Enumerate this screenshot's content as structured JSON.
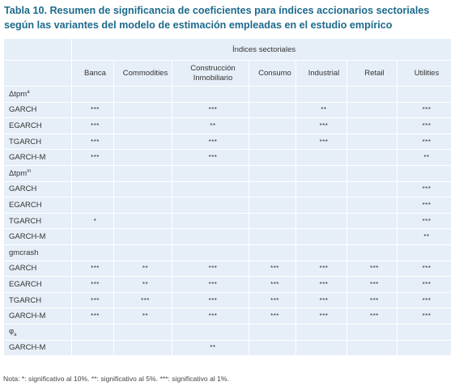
{
  "title": {
    "lines": [
      "Tabla 10. Resumen de significancia de coeficientes para índices accionarios sectoriales",
      "según las variantes del modelo de estimación empleadas en el estudio empírico"
    ]
  },
  "table": {
    "super_header": "Índices sectoriales",
    "columns": [
      "Banca",
      "Commodities",
      "Construcción\nInmobiliario",
      "Consumo",
      "Industrial",
      "Retail",
      "Utilities"
    ],
    "groups": [
      {
        "label": {
          "text": "Δtpm",
          "sup": "a"
        },
        "rows": [
          {
            "label": "GARCH",
            "cells": [
              "***",
              null,
              "***",
              null,
              "**",
              null,
              "***"
            ]
          },
          {
            "label": "EGARCH",
            "cells": [
              "***",
              null,
              "**",
              null,
              "***",
              null,
              "***"
            ]
          },
          {
            "label": "TGARCH",
            "cells": [
              "***",
              null,
              "***",
              null,
              "***",
              null,
              "***"
            ]
          },
          {
            "label": "GARCH-M",
            "cells": [
              "***",
              null,
              "***",
              null,
              null,
              null,
              "**"
            ]
          }
        ]
      },
      {
        "label": {
          "text": "Δtpm",
          "sup": "m"
        },
        "rows": [
          {
            "label": "GARCH",
            "cells": [
              null,
              null,
              null,
              null,
              null,
              null,
              "***"
            ]
          },
          {
            "label": "EGARCH",
            "cells": [
              null,
              null,
              null,
              null,
              null,
              null,
              "***"
            ]
          },
          {
            "label": "TGARCH",
            "cells": [
              "*",
              null,
              null,
              null,
              null,
              null,
              "***"
            ]
          },
          {
            "label": "GARCH-M",
            "cells": [
              null,
              null,
              null,
              null,
              null,
              null,
              "**"
            ]
          }
        ]
      },
      {
        "label": {
          "text": "gmcrash"
        },
        "rows": [
          {
            "label": "GARCH",
            "cells": [
              "***",
              "**",
              "***",
              "***",
              "***",
              "***",
              "***"
            ]
          },
          {
            "label": "EGARCH",
            "cells": [
              "***",
              "**",
              "***",
              "***",
              "***",
              "***",
              "***"
            ]
          },
          {
            "label": "TGARCH",
            "cells": [
              "***",
              "***",
              "***",
              "***",
              "***",
              "***",
              "***"
            ]
          },
          {
            "label": "GARCH-M",
            "cells": [
              "***",
              "**",
              "***",
              "***",
              "***",
              "***",
              "***"
            ]
          }
        ]
      },
      {
        "label": {
          "text": "φ",
          "sub": "a"
        },
        "rows": [
          {
            "label": "GARCH-M",
            "cells": [
              null,
              null,
              "**",
              null,
              null,
              null,
              null
            ]
          }
        ]
      }
    ]
  },
  "note": "Nota: *: significativo al 10%. **: significativo al 5%. ***: significativo al 1%."
}
